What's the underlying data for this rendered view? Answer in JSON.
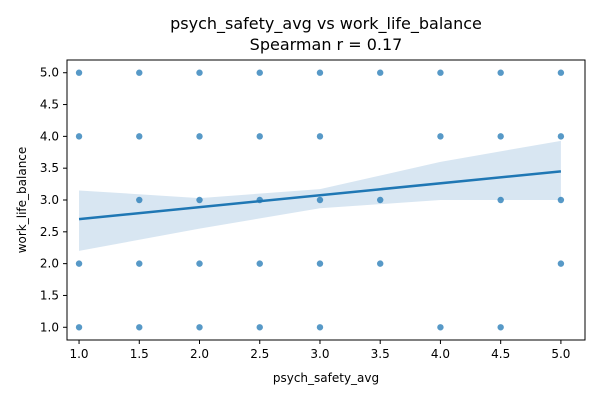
{
  "chart_data": {
    "type": "scatter",
    "title": "psych_safety_avg vs work_life_balance",
    "subtitle": "Spearman r = 0.17",
    "xlabel": "psych_safety_avg",
    "ylabel": "work_life_balance",
    "xlim": [
      0.9,
      5.2
    ],
    "ylim": [
      0.8,
      5.2
    ],
    "xticks": [
      "1.0",
      "1.5",
      "2.0",
      "2.5",
      "3.0",
      "3.5",
      "4.0",
      "4.5",
      "5.0"
    ],
    "yticks": [
      "1.0",
      "1.5",
      "2.0",
      "2.5",
      "3.0",
      "3.5",
      "4.0",
      "4.5",
      "5.0"
    ],
    "grid": false,
    "colors": {
      "points": "#1f77b4",
      "line": "#1f77b4",
      "band": "#a9c8e3"
    },
    "points": [
      {
        "x": 1.0,
        "y": 5.0
      },
      {
        "x": 1.5,
        "y": 5.0
      },
      {
        "x": 2.0,
        "y": 5.0
      },
      {
        "x": 2.5,
        "y": 5.0
      },
      {
        "x": 3.0,
        "y": 5.0
      },
      {
        "x": 3.5,
        "y": 5.0
      },
      {
        "x": 4.0,
        "y": 5.0
      },
      {
        "x": 4.5,
        "y": 5.0
      },
      {
        "x": 5.0,
        "y": 5.0
      },
      {
        "x": 1.0,
        "y": 4.0
      },
      {
        "x": 1.5,
        "y": 4.0
      },
      {
        "x": 2.0,
        "y": 4.0
      },
      {
        "x": 2.5,
        "y": 4.0
      },
      {
        "x": 3.0,
        "y": 4.0
      },
      {
        "x": 4.0,
        "y": 4.0
      },
      {
        "x": 4.5,
        "y": 4.0
      },
      {
        "x": 5.0,
        "y": 4.0
      },
      {
        "x": 1.5,
        "y": 3.0
      },
      {
        "x": 2.0,
        "y": 3.0
      },
      {
        "x": 2.5,
        "y": 3.0
      },
      {
        "x": 3.0,
        "y": 3.0
      },
      {
        "x": 3.5,
        "y": 3.0
      },
      {
        "x": 4.5,
        "y": 3.0
      },
      {
        "x": 5.0,
        "y": 3.0
      },
      {
        "x": 1.0,
        "y": 2.0
      },
      {
        "x": 1.5,
        "y": 2.0
      },
      {
        "x": 2.0,
        "y": 2.0
      },
      {
        "x": 2.5,
        "y": 2.0
      },
      {
        "x": 3.0,
        "y": 2.0
      },
      {
        "x": 3.5,
        "y": 2.0
      },
      {
        "x": 5.0,
        "y": 2.0
      },
      {
        "x": 1.0,
        "y": 1.0
      },
      {
        "x": 1.5,
        "y": 1.0
      },
      {
        "x": 2.0,
        "y": 1.0
      },
      {
        "x": 2.5,
        "y": 1.0
      },
      {
        "x": 3.0,
        "y": 1.0
      },
      {
        "x": 4.0,
        "y": 1.0
      },
      {
        "x": 4.5,
        "y": 1.0
      }
    ],
    "regression": {
      "line": [
        {
          "x": 1.0,
          "y": 2.7
        },
        {
          "x": 5.0,
          "y": 3.45
        }
      ],
      "ci_upper": [
        {
          "x": 1.0,
          "y": 3.15
        },
        {
          "x": 2.0,
          "y": 3.03
        },
        {
          "x": 3.0,
          "y": 3.17
        },
        {
          "x": 4.0,
          "y": 3.6
        },
        {
          "x": 5.0,
          "y": 3.93
        }
      ],
      "ci_lower": [
        {
          "x": 1.0,
          "y": 2.2
        },
        {
          "x": 2.0,
          "y": 2.55
        },
        {
          "x": 3.0,
          "y": 2.87
        },
        {
          "x": 4.0,
          "y": 3.0
        },
        {
          "x": 5.0,
          "y": 3.0
        }
      ]
    }
  }
}
